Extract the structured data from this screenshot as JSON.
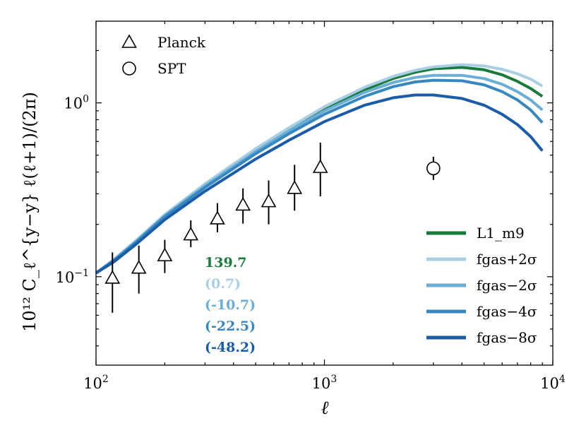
{
  "chart_data": {
    "type": "line",
    "xscale": "log",
    "yscale": "log",
    "xlim": [
      100,
      10000
    ],
    "ylim": [
      0.031,
      2.95
    ],
    "xlabel": "ℓ",
    "ylabel": "10¹² C_ℓ^{y−y} ℓ(ℓ+1)/(2π)",
    "x_ticks": [
      {
        "value": 100,
        "base": "10",
        "exp": "2"
      },
      {
        "value": 1000,
        "base": "10",
        "exp": "3"
      },
      {
        "value": 10000,
        "base": "10",
        "exp": "4"
      }
    ],
    "y_ticks": [
      {
        "value": 0.1,
        "base": "10",
        "exp": "−1"
      },
      {
        "value": 1,
        "base": "10",
        "exp": "0"
      }
    ],
    "x": [
      100,
      120,
      150,
      200,
      300,
      500,
      700,
      1000,
      1500,
      2000,
      2500,
      3000,
      4000,
      5000,
      6000,
      7000,
      8000,
      9000
    ],
    "series": [
      {
        "name": "L1_m9",
        "color": "#1a7a3c",
        "values": [
          0.105,
          0.125,
          0.16,
          0.225,
          0.335,
          0.53,
          0.7,
          0.92,
          1.19,
          1.38,
          1.5,
          1.57,
          1.6,
          1.55,
          1.45,
          1.33,
          1.21,
          1.09
        ]
      },
      {
        "name": "fgas+2σ",
        "color": "#a9cfe5",
        "values": [
          0.105,
          0.126,
          0.162,
          0.228,
          0.342,
          0.545,
          0.72,
          0.95,
          1.23,
          1.42,
          1.54,
          1.61,
          1.66,
          1.63,
          1.56,
          1.47,
          1.37,
          1.25
        ]
      },
      {
        "name": "fgas−2σ",
        "color": "#6aaed6",
        "values": [
          0.105,
          0.125,
          0.16,
          0.224,
          0.333,
          0.525,
          0.69,
          0.9,
          1.15,
          1.31,
          1.4,
          1.44,
          1.44,
          1.38,
          1.28,
          1.16,
          1.04,
          0.91
        ]
      },
      {
        "name": "fgas−4σ",
        "color": "#3787c0",
        "values": [
          0.105,
          0.124,
          0.158,
          0.221,
          0.326,
          0.51,
          0.665,
          0.86,
          1.09,
          1.24,
          1.32,
          1.35,
          1.34,
          1.27,
          1.16,
          1.04,
          0.91,
          0.77
        ]
      },
      {
        "name": "fgas−8σ",
        "color": "#1b5ca8",
        "values": [
          0.105,
          0.122,
          0.154,
          0.213,
          0.31,
          0.475,
          0.61,
          0.78,
          0.97,
          1.07,
          1.11,
          1.11,
          1.06,
          0.97,
          0.86,
          0.75,
          0.64,
          0.53
        ]
      }
    ],
    "data_points": [
      {
        "name": "Planck",
        "marker": "triangle",
        "points": [
          {
            "x": 118,
            "y": 0.098,
            "lo": 0.062,
            "hi": 0.138
          },
          {
            "x": 154,
            "y": 0.112,
            "lo": 0.08,
            "hi": 0.151
          },
          {
            "x": 200,
            "y": 0.132,
            "lo": 0.105,
            "hi": 0.163
          },
          {
            "x": 260,
            "y": 0.174,
            "lo": 0.148,
            "hi": 0.211
          },
          {
            "x": 340,
            "y": 0.215,
            "lo": 0.18,
            "hi": 0.265
          },
          {
            "x": 440,
            "y": 0.258,
            "lo": 0.202,
            "hi": 0.322
          },
          {
            "x": 570,
            "y": 0.27,
            "lo": 0.2,
            "hi": 0.358
          },
          {
            "x": 740,
            "y": 0.322,
            "lo": 0.24,
            "hi": 0.44
          },
          {
            "x": 960,
            "y": 0.425,
            "lo": 0.29,
            "hi": 0.59
          }
        ]
      },
      {
        "name": "SPT",
        "marker": "circle",
        "points": [
          {
            "x": 3000,
            "y": 0.42,
            "lo": 0.36,
            "hi": 0.49
          }
        ]
      }
    ],
    "legend_markers": [
      {
        "name": "Planck",
        "marker": "triangle"
      },
      {
        "name": "SPT",
        "marker": "circle"
      }
    ],
    "legend_lines": [
      "L1_m9",
      "fgas+2σ",
      "fgas−2σ",
      "fgas−4σ",
      "fgas−8σ"
    ],
    "annotations": [
      {
        "text": "139.7",
        "color": "#1a7a3c"
      },
      {
        "text": "(0.7)",
        "color": "#a9cfe5"
      },
      {
        "text": "(-10.7)",
        "color": "#6aaed6"
      },
      {
        "text": "(-22.5)",
        "color": "#3787c0"
      },
      {
        "text": "(-48.2)",
        "color": "#1b5ca8"
      }
    ]
  }
}
